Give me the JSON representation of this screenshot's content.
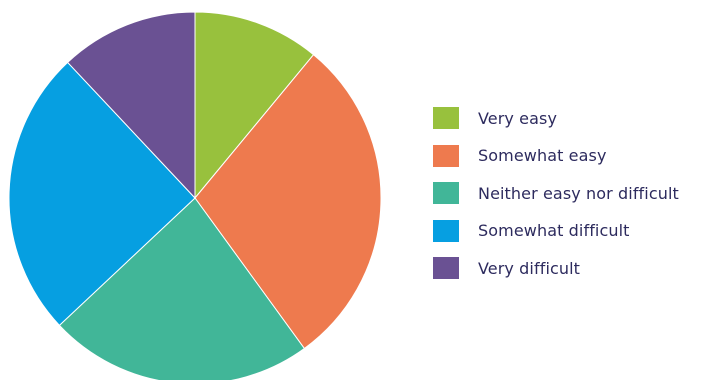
{
  "chart_data": {
    "type": "pie",
    "title": "",
    "legend_position": "right",
    "slices": [
      {
        "label": "Very easy",
        "value": 11,
        "color": "#98c13d"
      },
      {
        "label": "Somewhat easy",
        "value": 29,
        "color": "#ee7a4e"
      },
      {
        "label": "Neither easy nor difficult",
        "value": 23,
        "color": "#41b698"
      },
      {
        "label": "Somewhat difficult",
        "value": 25,
        "color": "#069fe1"
      },
      {
        "label": "Very difficult",
        "value": 12,
        "color": "#6a5193"
      }
    ]
  }
}
